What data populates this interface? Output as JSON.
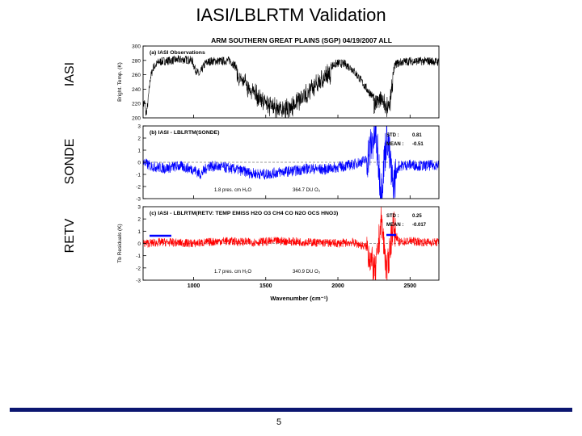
{
  "slide": {
    "title": "IASI/LBLRTM Validation",
    "side_labels": [
      "IASI",
      "SONDE",
      "RETV"
    ],
    "page_number": "5"
  },
  "chart_data": {
    "type": "line",
    "title": "ARM SOUTHERN GREAT PLAINS (SGP)  04/19/2007  ALL",
    "xlabel": "Wavenumber (cm⁻¹)",
    "xlim": [
      650,
      2700
    ],
    "xticks": [
      1000,
      1500,
      2000,
      2500
    ],
    "panels": [
      {
        "id": "a",
        "label": "(a) IASI Observations",
        "ylabel": "Bright. Temp. (K)",
        "ylim": [
          200,
          300
        ],
        "yticks": [
          200,
          220,
          240,
          260,
          280,
          300
        ],
        "color": "#000000",
        "anchors": [
          [
            650,
            218
          ],
          [
            660,
            222
          ],
          [
            670,
            205
          ],
          [
            680,
            215
          ],
          [
            700,
            255
          ],
          [
            720,
            270
          ],
          [
            760,
            278
          ],
          [
            800,
            279
          ],
          [
            850,
            280
          ],
          [
            900,
            281
          ],
          [
            950,
            281
          ],
          [
            990,
            280
          ],
          [
            1010,
            268
          ],
          [
            1040,
            260
          ],
          [
            1060,
            268
          ],
          [
            1080,
            276
          ],
          [
            1120,
            279
          ],
          [
            1200,
            279
          ],
          [
            1250,
            280
          ],
          [
            1300,
            270
          ],
          [
            1350,
            262
          ],
          [
            1400,
            250
          ],
          [
            1450,
            240
          ],
          [
            1500,
            232
          ],
          [
            1550,
            225
          ],
          [
            1600,
            222
          ],
          [
            1650,
            224
          ],
          [
            1700,
            230
          ],
          [
            1750,
            238
          ],
          [
            1800,
            248
          ],
          [
            1850,
            258
          ],
          [
            1900,
            266
          ],
          [
            1950,
            272
          ],
          [
            2000,
            276
          ],
          [
            2050,
            275
          ],
          [
            2100,
            268
          ],
          [
            2150,
            255
          ],
          [
            2200,
            240
          ],
          [
            2250,
            228
          ],
          [
            2280,
            235
          ],
          [
            2300,
            240
          ],
          [
            2320,
            233
          ],
          [
            2340,
            225
          ],
          [
            2360,
            228
          ],
          [
            2380,
            262
          ],
          [
            2400,
            275
          ],
          [
            2450,
            278
          ],
          [
            2500,
            279
          ],
          [
            2550,
            279
          ],
          [
            2600,
            279
          ],
          [
            2650,
            279
          ],
          [
            2690,
            278
          ]
        ],
        "noise_amp": 6
      },
      {
        "id": "b",
        "label": "(b)  IASI - LBLRTM(SONDE)",
        "ylabel": "",
        "ylim": [
          -3,
          3
        ],
        "yticks": [
          -3,
          -2,
          -1,
          0,
          1,
          2,
          3
        ],
        "color": "#0000ff",
        "stats": {
          "std_label": "STD :",
          "std": "0.81",
          "mean_label": "MEAN :",
          "mean": "-0.51"
        },
        "annotations": [
          "1.8 pres. cm H₂O",
          "364.7 DU O₃"
        ],
        "anchors": [
          [
            650,
            0
          ],
          [
            700,
            -0.3
          ],
          [
            800,
            -0.5
          ],
          [
            900,
            -0.3
          ],
          [
            1000,
            -0.6
          ],
          [
            1050,
            -1.0
          ],
          [
            1100,
            -0.3
          ],
          [
            1200,
            -0.4
          ],
          [
            1300,
            -0.6
          ],
          [
            1400,
            -0.9
          ],
          [
            1500,
            -1.0
          ],
          [
            1600,
            -0.8
          ],
          [
            1700,
            -0.7
          ],
          [
            1800,
            -0.5
          ],
          [
            1900,
            -0.6
          ],
          [
            2000,
            -0.4
          ],
          [
            2100,
            -0.2
          ],
          [
            2200,
            0.2
          ],
          [
            2260,
            2.5
          ],
          [
            2300,
            -2.5
          ],
          [
            2340,
            2.5
          ],
          [
            2380,
            -2.0
          ],
          [
            2420,
            -0.3
          ],
          [
            2500,
            -0.2
          ],
          [
            2600,
            -0.3
          ],
          [
            2690,
            -0.2
          ]
        ],
        "noise_amp": 0.45
      },
      {
        "id": "c",
        "label": "(c)  IASI - LBLRTM(RETV: TEMP EMISS H2O O3 CH4 CO N2O OCS HNO3)",
        "ylabel": "Tb Residuals (K)",
        "ylim": [
          -3,
          3
        ],
        "yticks": [
          -3,
          -2,
          -1,
          0,
          1,
          2,
          3
        ],
        "color": "#ff0000",
        "stats": {
          "std_label": "STD :",
          "std": "0.25",
          "mean_label": "MEAN :",
          "mean": "-0.017"
        },
        "annotations": [
          "1.7 pres. cm H₂O",
          "340.9 DU O₃"
        ],
        "anchors": [
          [
            650,
            0
          ],
          [
            800,
            0.1
          ],
          [
            1000,
            0
          ],
          [
            1200,
            0.2
          ],
          [
            1400,
            0.1
          ],
          [
            1600,
            0.2
          ],
          [
            1800,
            0.1
          ],
          [
            2000,
            0
          ],
          [
            2100,
            0.1
          ],
          [
            2200,
            -0.3
          ],
          [
            2260,
            -2.5
          ],
          [
            2300,
            2.0
          ],
          [
            2340,
            -2.5
          ],
          [
            2380,
            1.5
          ],
          [
            2420,
            0.1
          ],
          [
            2500,
            0.2
          ],
          [
            2600,
            0.1
          ],
          [
            2690,
            0.1
          ]
        ],
        "noise_amp": 0.35
      }
    ]
  }
}
